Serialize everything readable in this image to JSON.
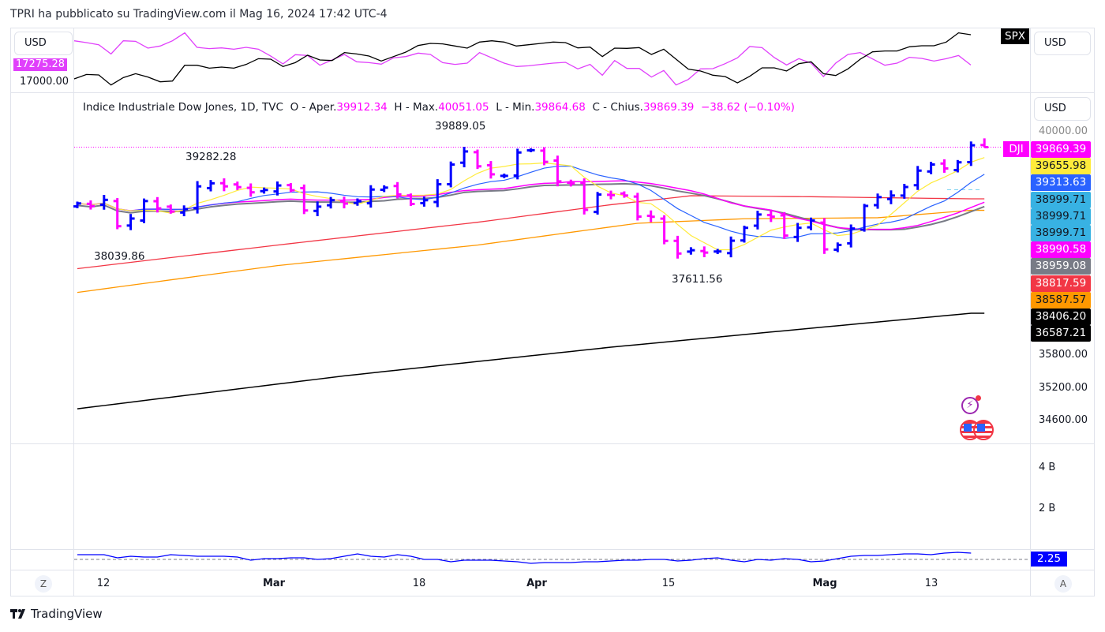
{
  "header": {
    "published": "TPRI ha pubblicato su TradingView.com il Mag 16, 2024 17:42 UTC-4"
  },
  "top_pane": {
    "currency_left": "USD",
    "currency_right": "USD",
    "current_label": "17275.28",
    "axis_label": "17000.00",
    "symbol_badge": "SPX"
  },
  "main_pane": {
    "currency": "USD",
    "symbol_badge": "DJI",
    "legend": {
      "title": "Indice Industriale Dow Jones, 1D, TVC",
      "o_label": "O - Aper.",
      "o": "39912.34",
      "h_label": "H - Max.",
      "h": "40051.05",
      "l_label": "L - Min.",
      "l": "39864.68",
      "c_label": "C - Chius.",
      "c": "39869.39",
      "change": "−38.62 (−0.10%)"
    },
    "annotations": {
      "high1": "39889.05",
      "high2": "39282.28",
      "low1": "38039.86",
      "low2": "37611.56"
    },
    "price_tags": [
      {
        "value": "39869.39",
        "bg": "#ff00ff",
        "fg": "#ffffff"
      },
      {
        "value": "39655.98",
        "bg": "#ffeb3b",
        "fg": "#131722"
      },
      {
        "value": "39313.63",
        "bg": "#2962ff",
        "fg": "#ffffff"
      },
      {
        "value": "38999.71",
        "bg": "#38b2e3",
        "fg": "#131722"
      },
      {
        "value": "38999.71",
        "bg": "#38b2e3",
        "fg": "#131722"
      },
      {
        "value": "38999.71",
        "bg": "#38b2e3",
        "fg": "#131722"
      },
      {
        "value": "38990.58",
        "bg": "#ff00ff",
        "fg": "#ffffff"
      },
      {
        "value": "38959.08",
        "bg": "#787b86",
        "fg": "#ffffff"
      },
      {
        "value": "38817.59",
        "bg": "#f23645",
        "fg": "#ffffff"
      },
      {
        "value": "38587.57",
        "bg": "#ff9800",
        "fg": "#131722"
      },
      {
        "value": "38406.20",
        "bg": "#000000",
        "fg": "#ffffff"
      },
      {
        "value": "36587.21",
        "bg": "#000000",
        "fg": "#ffffff"
      }
    ],
    "axis_labels": [
      "40000.00",
      "35800.00",
      "35200.00",
      "34600.00"
    ]
  },
  "volume_pane": {
    "axis_labels": [
      "4 B",
      "2 B"
    ]
  },
  "indicator_pane": {
    "value_label": "2.25"
  },
  "time_axis": {
    "labels": [
      {
        "text": "12",
        "bold": false
      },
      {
        "text": "Mar",
        "bold": true
      },
      {
        "text": "18",
        "bold": false
      },
      {
        "text": "Apr",
        "bold": true
      },
      {
        "text": "15",
        "bold": false
      },
      {
        "text": "Mag",
        "bold": true
      },
      {
        "text": "13",
        "bold": false
      }
    ],
    "z_button": "Z",
    "a_button": "A"
  },
  "footer": {
    "brand": "TradingView"
  },
  "colors": {
    "up": "#0000ff",
    "down": "#ff00ff",
    "ma5": "#ffeb3b",
    "ma10": "#2962ff",
    "ma20": "#ff00ff",
    "ma21": "#787b86",
    "ma50": "#f23645",
    "ma100": "#ff9800",
    "ma200": "#000000"
  },
  "chart_data": {
    "type": "ohlc",
    "y_scale": "log",
    "x_start": "2024-02-08",
    "x_end": "2024-05-16",
    "closes": [
      38726,
      38671,
      38797,
      38272,
      38424,
      38773,
      38627,
      38563,
      38612,
      39069,
      39131,
      39069,
      39053,
      38949,
      38996,
      39087,
      38990,
      38585,
      38661,
      38791,
      38723,
      38770,
      39005,
      39043,
      38906,
      38715,
      38790,
      39111,
      39512,
      39781,
      39476,
      39313,
      39282,
      39760,
      39807,
      39567,
      39170,
      39127,
      38597,
      38904,
      38892,
      38884,
      38462,
      38459,
      37983,
      37735,
      37799,
      37753,
      37775,
      37986,
      38240,
      38504,
      38461,
      38086,
      38240,
      38386,
      37816,
      37903,
      38226,
      38676,
      38852,
      38884,
      39056,
      39388,
      39513,
      39432,
      39558,
      39908,
      39869
    ],
    "last_bar": {
      "open": 39912.34,
      "high": 40051.05,
      "low": 39864.68,
      "close": 39869.39
    },
    "ma_long": {
      "ma50": {
        "index": [
          0,
          15,
          30,
          40,
          46,
          55,
          67
        ],
        "values": [
          37440,
          37900,
          38350,
          38700,
          38880,
          38860,
          38817.59
        ]
      },
      "ma100": {
        "index": [
          0,
          15,
          30,
          42,
          50,
          60,
          67
        ],
        "values": [
          36983,
          37500,
          37900,
          38330,
          38420,
          38440,
          38587.57
        ]
      },
      "ma200": {
        "index": [
          0,
          20,
          40,
          67
        ],
        "values": [
          34822,
          35420,
          35950,
          36587.21
        ]
      }
    },
    "compare": {
      "spx": [
        16963,
        17067,
        17055,
        16822,
        16994,
        17085,
        17006,
        16896,
        16914,
        17281,
        17281,
        17214,
        17238,
        17214,
        17300,
        17434,
        17422,
        17251,
        17342,
        17514,
        17404,
        17391,
        17575,
        17544,
        17495,
        17379,
        17483,
        17587,
        17740,
        17789,
        17777,
        17728,
        17679,
        17820,
        17850,
        17820,
        17728,
        17758,
        17789,
        17820,
        17807,
        17685,
        17703,
        17483,
        17679,
        17673,
        17691,
        17532,
        17654,
        17422,
        17190,
        17147,
        17049,
        17018,
        16871,
        17024,
        17220,
        17220,
        17147,
        17318,
        17361,
        17085,
        17043,
        17196,
        17422,
        17593,
        17612,
        17612,
        17710,
        17734,
        17734,
        17820,
        18034,
        17991
      ],
      "main": [
        17850,
        17807,
        17758,
        17544,
        17850,
        17838,
        17679,
        17728,
        17850,
        18034,
        17697,
        17667,
        17685,
        17654,
        17697,
        17654,
        17495,
        17312,
        17526,
        17508,
        17281,
        17404,
        17532,
        17361,
        17342,
        17306,
        17453,
        17483,
        17563,
        17532,
        17342,
        17300,
        17330,
        17575,
        17453,
        17330,
        17251,
        17269,
        17300,
        17330,
        17349,
        17196,
        17300,
        17049,
        17391,
        17208,
        17208,
        17006,
        17159,
        16822,
        16951,
        17196,
        17202,
        17318,
        17453,
        17716,
        17691,
        17459,
        17287,
        17434,
        17330,
        17018,
        17330,
        17532,
        17575,
        17428,
        17281,
        17330,
        17465,
        17440,
        17379,
        17434,
        17508,
        17287
      ]
    },
    "indicator": [
      2.55,
      2.55,
      2.55,
      2.35,
      2.45,
      2.4,
      2.4,
      2.55,
      2.5,
      2.45,
      2.45,
      2.45,
      2.4,
      2.2,
      2.3,
      2.3,
      2.35,
      2.35,
      2.25,
      2.3,
      2.45,
      2.6,
      2.45,
      2.4,
      2.55,
      2.45,
      2.25,
      2.25,
      2.1,
      2.2,
      2.2,
      2.2,
      2.15,
      2.1,
      2.0,
      2.05,
      2.05,
      2.05,
      2.1,
      2.1,
      2.15,
      2.2,
      2.2,
      2.25,
      2.25,
      2.15,
      2.2,
      2.3,
      2.35,
      2.2,
      2.1,
      2.25,
      2.2,
      2.3,
      2.25,
      2.1,
      2.15,
      2.3,
      2.45,
      2.5,
      2.5,
      2.55,
      2.6,
      2.6,
      2.55,
      2.65,
      2.7,
      2.65
    ],
    "indicator_baseline": 2.25
  }
}
